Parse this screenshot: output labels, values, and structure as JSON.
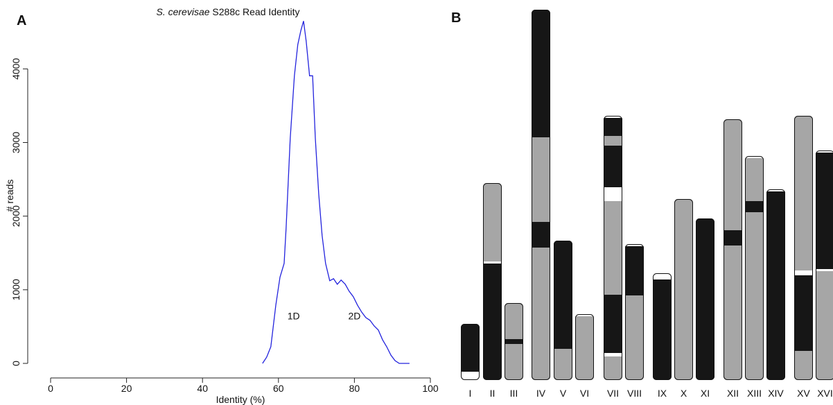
{
  "chart_data": [
    {
      "type": "line",
      "panel": "A",
      "title": [
        "S. cerevisae",
        "S288c Read Identity"
      ],
      "xlabel": "Identity (%)",
      "ylabel": "# reads",
      "xlim": [
        0,
        100
      ],
      "ylim": [
        0,
        4700
      ],
      "xticks": [
        0,
        20,
        40,
        60,
        80,
        100
      ],
      "yticks": [
        0,
        1000,
        2000,
        3000,
        4000
      ],
      "annotations": [
        {
          "text": "1D",
          "x": 64,
          "y": 600
        },
        {
          "text": "2D",
          "x": 80,
          "y": 600
        }
      ],
      "x": [
        55.8,
        56.9,
        58.0,
        59.3,
        60.4,
        61.5,
        62.0,
        63.1,
        64.2,
        65.1,
        65.9,
        66.6,
        67.3,
        68.2,
        69.0,
        69.7,
        70.6,
        71.5,
        72.4,
        73.5,
        74.5,
        75.5,
        76.5,
        77.6,
        78.6,
        79.7,
        80.8,
        81.9,
        83.0,
        84.1,
        85.2,
        86.3,
        87.4,
        88.5,
        89.6,
        90.7,
        91.8,
        94.5
      ],
      "series": [
        {
          "color": "#2222dd",
          "values": [
            0,
            85,
            226,
            792,
            1170,
            1358,
            1830,
            3057,
            3906,
            4330,
            4519,
            4650,
            4377,
            3906,
            3906,
            3057,
            2302,
            1736,
            1358,
            1123,
            1150,
            1075,
            1132,
            1075,
            981,
            906,
            792,
            698,
            623,
            585,
            509,
            453,
            321,
            226,
            113,
            38,
            0,
            0
          ]
        }
      ]
    },
    {
      "type": "chromosomes",
      "panel": "B",
      "chromosomes": [
        {
          "label": "I",
          "segments": [
            {
              "color": "#ffffff",
              "length": 12
            },
            {
              "color": "#161616",
              "length": 69
            }
          ]
        },
        {
          "label": "II",
          "segments": [
            {
              "color": "#161616",
              "length": 168
            },
            {
              "color": "#ffffff",
              "length": 3
            },
            {
              "color": "#a6a6a6",
              "length": 113
            }
          ]
        },
        {
          "label": "III",
          "segments": [
            {
              "color": "#a6a6a6",
              "length": 52
            },
            {
              "color": "#161616",
              "length": 7
            },
            {
              "color": "#a6a6a6",
              "length": 52
            }
          ]
        },
        {
          "label": "IV",
          "segments": [
            {
              "color": "#a6a6a6",
              "length": 191
            },
            {
              "color": "#161616",
              "length": 37
            },
            {
              "color": "#a6a6a6",
              "length": 122
            },
            {
              "color": "#161616",
              "length": 184
            }
          ]
        },
        {
          "label": "V",
          "segments": [
            {
              "color": "#a6a6a6",
              "length": 45
            },
            {
              "color": "#161616",
              "length": 156
            }
          ]
        },
        {
          "label": "VI",
          "segments": [
            {
              "color": "#a6a6a6",
              "length": 92
            },
            {
              "color": "#ffffff",
              "length": 3
            }
          ]
        },
        {
          "label": "VII",
          "segments": [
            {
              "color": "#a6a6a6",
              "length": 34
            },
            {
              "color": "#ffffff",
              "length": 5
            },
            {
              "color": "#161616",
              "length": 84
            },
            {
              "color": "#a6a6a6",
              "length": 135
            },
            {
              "color": "#ffffff",
              "length": 20
            },
            {
              "color": "#161616",
              "length": 60
            },
            {
              "color": "#a6a6a6",
              "length": 14
            },
            {
              "color": "#161616",
              "length": 26
            },
            {
              "color": "#ffffff",
              "length": 3
            }
          ]
        },
        {
          "label": "VIII",
          "segments": [
            {
              "color": "#a6a6a6",
              "length": 122
            },
            {
              "color": "#161616",
              "length": 71
            },
            {
              "color": "#ffffff",
              "length": 3
            }
          ]
        },
        {
          "label": "IX",
          "segments": [
            {
              "color": "#161616",
              "length": 145
            },
            {
              "color": "#ffffff",
              "length": 9
            }
          ]
        },
        {
          "label": "X",
          "segments": [
            {
              "color": "#a6a6a6",
              "length": 261
            }
          ]
        },
        {
          "label": "XI",
          "segments": [
            {
              "color": "#161616",
              "length": 233
            }
          ]
        },
        {
          "label": "XII",
          "segments": [
            {
              "color": "#a6a6a6",
              "length": 194
            },
            {
              "color": "#161616",
              "length": 22
            },
            {
              "color": "#a6a6a6",
              "length": 160
            }
          ]
        },
        {
          "label": "XIII",
          "segments": [
            {
              "color": "#a6a6a6",
              "length": 242
            },
            {
              "color": "#161616",
              "length": 16
            },
            {
              "color": "#a6a6a6",
              "length": 62
            },
            {
              "color": "#ffffff",
              "length": 3
            }
          ]
        },
        {
          "label": "XIV",
          "segments": [
            {
              "color": "#161616",
              "length": 272
            },
            {
              "color": "#ffffff",
              "length": 3
            }
          ]
        },
        {
          "label": "XV",
          "segments": [
            {
              "color": "#a6a6a6",
              "length": 42
            },
            {
              "color": "#161616",
              "length": 109
            },
            {
              "color": "#ffffff",
              "length": 7
            },
            {
              "color": "#a6a6a6",
              "length": 223
            }
          ]
        },
        {
          "label": "XVI",
          "segments": [
            {
              "color": "#a6a6a6",
              "length": 157
            },
            {
              "color": "#ffffff",
              "length": 3
            },
            {
              "color": "#161616",
              "length": 168
            },
            {
              "color": "#ffffff",
              "length": 3
            }
          ]
        }
      ]
    }
  ]
}
